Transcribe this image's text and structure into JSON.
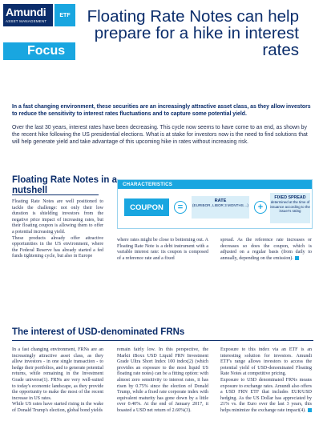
{
  "brand": {
    "name": "Amundi",
    "sub": "ASSET MANAGEMENT",
    "badge": "ETF",
    "color": "#0b2d6b",
    "accent": "#19a6e0"
  },
  "focus_label": "Focus",
  "title": "Floating Rate Notes can help prepare for a hike in interest rates",
  "lead_bold": "In a fast changing environment, these securities are an increasingly attractive asset class, as they allow investors to reduce the sensitivity to interest rates fluctuations and to capture some potential yield.",
  "lead_text": "Over the last 30 years, interest rates have been decreasing. This cycle now seems to have come to an end, as shown by the recent hike following the US presidential elections. What is at stake for investors now is the need to find solutions that will help generate yield and take advantage of this upcoming hike in rates without increasing risk.",
  "section1": {
    "title": "Floating Rate Notes in a nutshell",
    "col1": [
      "Floating Rate Notes are well positioned to tackle the challenge: not only their low duration is shielding investors from the negative price impact of increasing rates, but their floating coupon is allowing them to offer a potential increasing yield.",
      "These products already offer attractive opportunities in the US environment, where the Federal Reserve has already started a fed funds tightening cycle, but also in Europe"
    ],
    "col2": "where rates might be close to bottoming out. A Floating Rate Note is a debt instrument with a variable interest rate: its coupon is composed of a reference rate and a fixed",
    "col3": "spread. As the reference rate increases or decreases so does the coupon, which is adjusted on a regular basis (from daily to annually, depending on the emission)."
  },
  "characteristics": {
    "header": "CHARACTERISTICS",
    "coupon": "COUPON",
    "equals": "=",
    "plus": "+",
    "rate_title": "RATE",
    "rate_sub": "(EURIBOR, LIBOR 3 MONTHS…)",
    "spread_title": "FIXED SPREAD",
    "spread_sub": "determined at the time of issuance according to the issuer's rating"
  },
  "section2": {
    "title": "The interest of USD-denominated FRNs",
    "col1": [
      "In a fast changing environment, FRNs are an increasingly attractive asset class, as they allow investors - in one single transaction - to hedge their portfolios, and to generate potential returns, while remaining in the Investment Grade universe(1). FRNs are very well-suited to today's economic landscape, as they provide the opportunity to make the most of the recent increase in US rates.",
      "While US rates have started rising in the wake of Donald Trump's election, global bond yields"
    ],
    "col2": "remain fairly low. In this perspective, the Markit iBoxx USD Liquid FRN Investment Grade Ultra Short Index 100 index(2) (which provides an exposure to the most liquid US floating rate notes) can be a fitting option: with almost zero sensitivity to interest rates, it has risen by 0.75% since the election of Donald Trump, while a fixed rate corporate index with equivalent maturity has gone down by a little over 0.40%. At the end of January 2017, it boasted a USD net return of 2.60%(3).",
    "col3": [
      "Exposure to this index via an ETF is an interesting solution for investors. Amundi ETF's range allows investors to access the potential yield of USD-denominated Floating Rate Notes at competitive pricing.",
      "Exposure to USD denominated FRNs means exposure to exchange rates. Amundi also offers a USD FRN ETF that includes EUR/USD hedging. As the US Dollar has appreciated by 21% vs. the Euro over the last 3 years, this helps minimize the exchange rate impact(4)."
    ]
  }
}
